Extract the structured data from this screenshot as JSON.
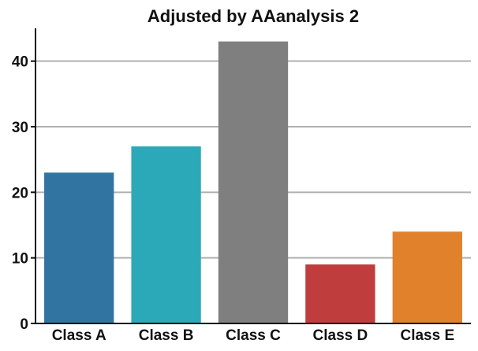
{
  "chart_data": {
    "type": "bar",
    "title": "Adjusted by AAanalysis 2",
    "xlabel": "",
    "ylabel": "",
    "categories": [
      "Class A",
      "Class B",
      "Class C",
      "Class D",
      "Class E"
    ],
    "values": [
      23,
      27,
      43,
      9,
      14
    ],
    "colors": [
      "#3274a1",
      "#2ca9b8",
      "#7f7f7f",
      "#c03d3e",
      "#e1812c"
    ],
    "ylim": [
      0,
      45
    ],
    "yticks": [
      0,
      10,
      20,
      30,
      40
    ],
    "grid": "horizontal",
    "grid_color": "#b0b0b0",
    "legend": "none"
  }
}
